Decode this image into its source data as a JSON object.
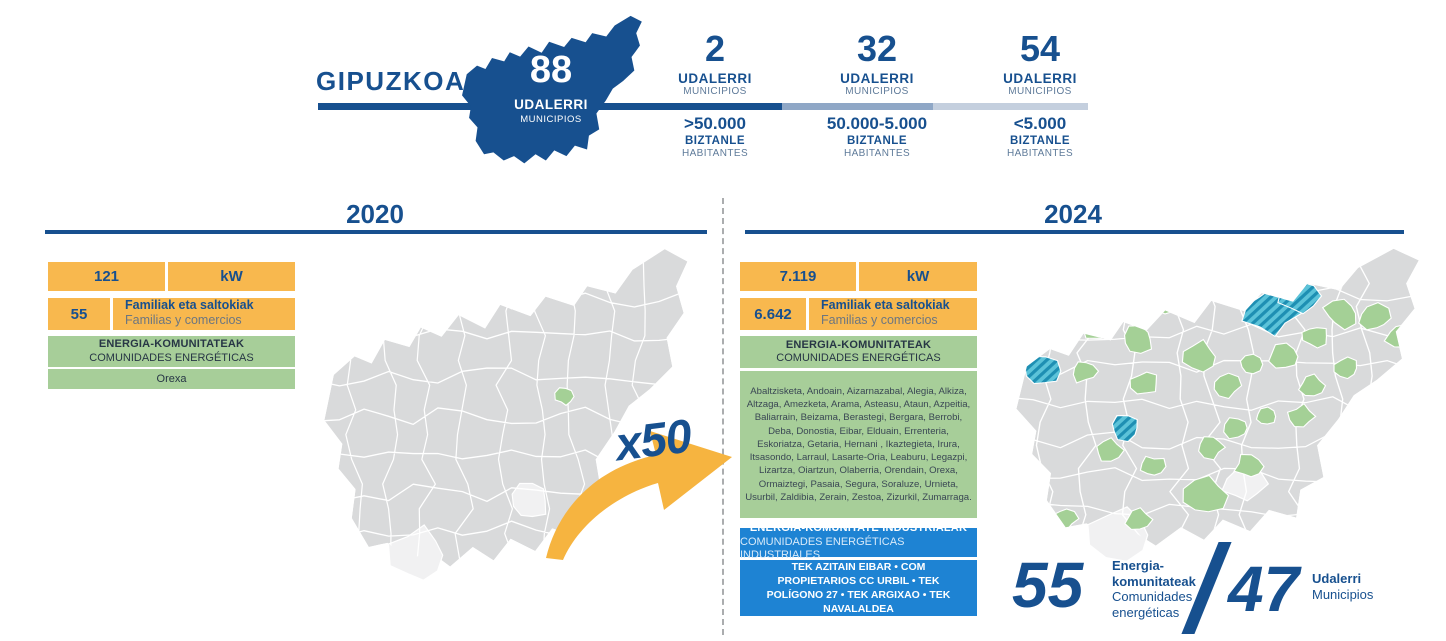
{
  "colors": {
    "blue": "#17508F",
    "blue-bright": "#1E83D3",
    "yellow": "#F8B84E",
    "green": "#A7CE99",
    "map-gray": "#D9DADB",
    "map-green": "#A4D096",
    "hatch-light": "#5CC3D9",
    "hatch-dark": "#1E8FB3",
    "bar-mid": "#8FA7C6",
    "bar-light": "#C4CFDE",
    "muted": "#5E7A99",
    "gray-text": "#6C7680",
    "dark-text": "#273645",
    "list-text": "#3A4754",
    "arrow": "#F6B440",
    "dashed": "#ABADAF"
  },
  "header": {
    "title": "GIPUZKOA",
    "map_badge": {
      "number": "88",
      "label_eu": "UDALERRI",
      "label_es": "MUNICIPIOS"
    },
    "stats": [
      {
        "number": "2",
        "label_eu": "UDALERRI",
        "label_es": "MUNICIPIOS",
        "range": ">50.000",
        "range_eu": "BIZTANLE",
        "range_es": "HABITANTES"
      },
      {
        "number": "32",
        "label_eu": "UDALERRI",
        "label_es": "MUNICIPIOS",
        "range": "50.000-5.000",
        "range_eu": "BIZTANLE",
        "range_es": "HABITANTES"
      },
      {
        "number": "54",
        "label_eu": "UDALERRI",
        "label_es": "MUNICIPIOS",
        "range": "<5.000",
        "range_eu": "BIZTANLE",
        "range_es": "HABITANTES"
      }
    ]
  },
  "year_2020": {
    "year": "2020",
    "kw": {
      "value": "121",
      "unit": "kW"
    },
    "families": {
      "value": "55",
      "label_eu": "Familiak eta saltokiak",
      "label_es": "Familias y comercios"
    },
    "communities": {
      "header_eu": "ENERGIA-KOMUNITATEAK",
      "header_es": "COMUNIDADES ENERGÉTICAS",
      "list": "Orexa"
    }
  },
  "multiplier": "x50",
  "year_2024": {
    "year": "2024",
    "kw": {
      "value": "7.119",
      "unit": "kW"
    },
    "families": {
      "value": "6.642",
      "label_eu": "Familiak eta saltokiak",
      "label_es": "Familias y comercios"
    },
    "communities": {
      "header_eu": "ENERGIA-KOMUNITATEAK",
      "header_es": "COMUNIDADES ENERGÉTICAS",
      "list": "Abaltzisketa, Andoain, Aizarnazabal, Alegia, Alkiza, Altzaga, Amezketa, Arama, Asteasu, Ataun, Azpeitia, Baliarrain, Beizama, Berastegi, Bergara, Berrobi, Deba, Donostia, Eibar, Elduain, Errenteria, Eskoriatza, Getaria, Hernani , Ikaztegieta, Irura, Itsasondo, Larraul, Lasarte-Oria, Leaburu, Legazpi, Lizartza, Oiartzun, Olaberria, Orendain, Orexa, Ormaiztegi, Pasaia, Segura, Soraluze, Urnieta, Usurbil, Zaldibia, Zerain, Zestoa, Zizurkil, Zumarraga."
    },
    "industrial": {
      "header_eu": "ENERGIA-KOMUNITATE INDUSTRIALAK",
      "header_es": "COMUNIDADES ENERGÉTICAS INDUSTRIALES",
      "list": "TEK AZITAIN EIBAR • COM PROPIETARIOS CC URBIL • TEK POLÍGONO 27 • TEK ARGIXAO • TEK NAVALALDEA"
    }
  },
  "summary": {
    "communities_number": "55",
    "communities_label_eu": "Energia-komunitateak",
    "communities_label_es": "Comunidades energéticas",
    "municipalities_number": "47",
    "municipalities_label_eu": "Udalerri",
    "municipalities_label_es": "Municipios"
  }
}
